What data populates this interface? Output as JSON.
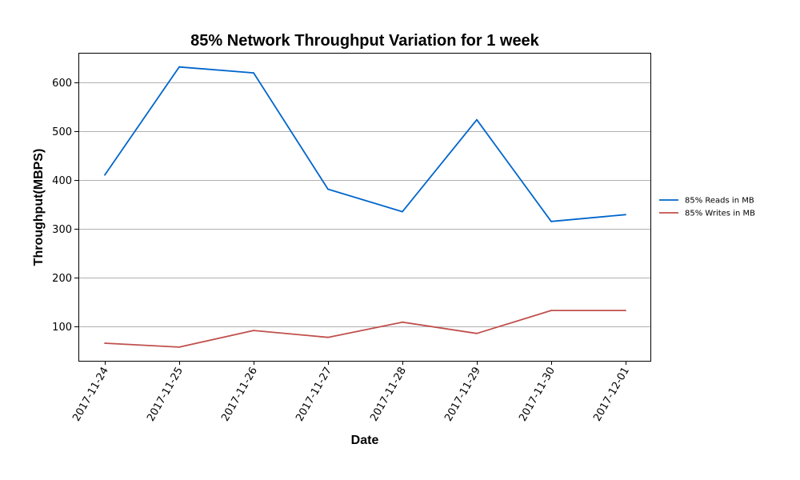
{
  "chart_data": {
    "type": "line",
    "title": "85% Network Throughput Variation for 1 week",
    "xlabel": "Date",
    "ylabel": "Throughput(MBPS)",
    "categories": [
      "2017-11-24",
      "2017-11-25",
      "2017-11-26",
      "2017-11-27",
      "2017-11-28",
      "2017-11-29",
      "2017-11-30",
      "2017-12-01"
    ],
    "ylim": [
      30,
      660
    ],
    "yticks": [
      100,
      200,
      300,
      400,
      500,
      600
    ],
    "grid": "horizontal",
    "legend_position": "right",
    "series": [
      {
        "name": "85% Reads in MB",
        "color": "#0066cc",
        "values": [
          410,
          631,
          619,
          381,
          335,
          523,
          315,
          329
        ]
      },
      {
        "name": "85% Writes in MB",
        "color": "#c0504d",
        "values": [
          66,
          58,
          92,
          78,
          109,
          86,
          133,
          133
        ]
      }
    ]
  }
}
